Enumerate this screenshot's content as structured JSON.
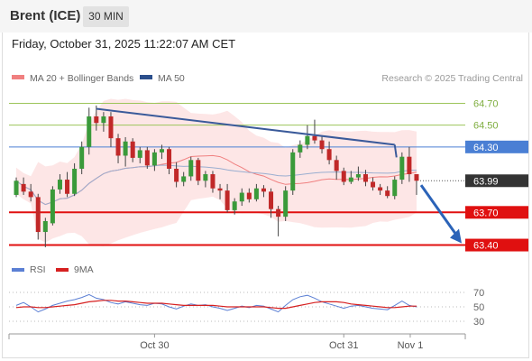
{
  "header": {
    "title": "Brent (ICE)",
    "timeframe": "30 MIN"
  },
  "datetime": "Friday, October 31, 2025 11:22:07 AM CET",
  "colors": {
    "resistance": "#9dc55a",
    "pivot": "#4a7fd4",
    "support": "#e01010",
    "ma20": "#f08080",
    "bollinger_fill": "#fde3e3",
    "ma50": "#2c4f8c",
    "candle_up": "#3a9a3a",
    "candle_down": "#c12828",
    "trend": "#3a5a9a",
    "arrow": "#2b63b8",
    "rsi": "#5b7fd4",
    "rsi_ma": "#d62020"
  },
  "legend": {
    "ma20": "MA 20 + Bollinger Bands",
    "ma50": "MA 50"
  },
  "watermark": "Research © 2025 Trading Central",
  "rsi_legend": {
    "rsi": "RSI",
    "ma": "9MA"
  },
  "chart_data": [
    {
      "type": "candlestick",
      "y_range": [
        63.33,
        64.82
      ],
      "x_ticks": [
        {
          "label": "Oct 30",
          "index": 19
        },
        {
          "label": "Oct 31",
          "index": 45
        },
        {
          "label": "Nov 1",
          "index": 55
        }
      ],
      "levels": [
        {
          "value": 64.7,
          "label": "64.70",
          "kind": "resistance"
        },
        {
          "value": 64.5,
          "label": "64.50",
          "kind": "resistance"
        },
        {
          "value": 64.3,
          "label": "64.30",
          "kind": "pivot"
        },
        {
          "value": 63.7,
          "label": "63.70",
          "kind": "support"
        },
        {
          "value": 63.4,
          "label": "63.40",
          "kind": "support"
        }
      ],
      "last_price": {
        "value": 63.99,
        "label": "63.99"
      },
      "trendline": {
        "from": {
          "index": 11,
          "value": 64.65
        },
        "to": {
          "index": 52,
          "value": 64.32
        }
      },
      "projection": {
        "from": {
          "index": 55,
          "value": 63.95
        },
        "to": {
          "index": 60,
          "value": 63.4
        }
      },
      "candles": [
        [
          63.86,
          63.99,
          63.84,
          64.02
        ],
        [
          63.96,
          63.89,
          63.86,
          64.02
        ],
        [
          63.89,
          63.84,
          63.8,
          63.96
        ],
        [
          63.84,
          63.52,
          63.45,
          63.87
        ],
        [
          63.52,
          63.62,
          63.38,
          63.65
        ],
        [
          63.6,
          63.91,
          63.58,
          63.94
        ],
        [
          63.91,
          64.0,
          63.87,
          64.05
        ],
        [
          64.0,
          63.87,
          63.84,
          64.07
        ],
        [
          63.87,
          64.1,
          63.85,
          64.15
        ],
        [
          64.1,
          64.3,
          64.05,
          64.35
        ],
        [
          64.3,
          64.58,
          64.23,
          64.66
        ],
        [
          64.58,
          64.52,
          64.45,
          64.68
        ],
        [
          64.52,
          64.58,
          64.44,
          64.62
        ],
        [
          64.58,
          64.38,
          64.3,
          64.62
        ],
        [
          64.38,
          64.22,
          64.15,
          64.42
        ],
        [
          64.22,
          64.35,
          64.12,
          64.39
        ],
        [
          64.35,
          64.2,
          64.16,
          64.38
        ],
        [
          64.2,
          64.27,
          64.15,
          64.3
        ],
        [
          64.27,
          64.13,
          64.1,
          64.3
        ],
        [
          64.13,
          64.25,
          64.08,
          64.28
        ],
        [
          64.25,
          64.28,
          64.19,
          64.32
        ],
        [
          64.28,
          64.1,
          64.05,
          64.3
        ],
        [
          64.1,
          63.98,
          63.93,
          64.16
        ],
        [
          63.98,
          64.03,
          63.94,
          64.07
        ],
        [
          64.03,
          64.18,
          63.99,
          64.21
        ],
        [
          64.18,
          63.99,
          63.95,
          64.2
        ],
        [
          63.99,
          64.05,
          63.93,
          64.08
        ],
        [
          64.05,
          63.92,
          63.88,
          64.08
        ],
        [
          63.92,
          63.9,
          63.82,
          63.96
        ],
        [
          63.9,
          63.72,
          63.7,
          63.96
        ],
        [
          63.72,
          63.8,
          63.68,
          63.83
        ],
        [
          63.8,
          63.88,
          63.76,
          63.92
        ],
        [
          63.88,
          63.82,
          63.79,
          63.92
        ],
        [
          63.82,
          63.92,
          63.8,
          63.96
        ],
        [
          63.92,
          63.89,
          63.84,
          63.95
        ],
        [
          63.89,
          63.73,
          63.65,
          63.92
        ],
        [
          63.73,
          63.66,
          63.48,
          63.76
        ],
        [
          63.66,
          63.9,
          63.62,
          63.94
        ],
        [
          63.9,
          64.25,
          63.86,
          64.28
        ],
        [
          64.25,
          64.32,
          64.2,
          64.36
        ],
        [
          64.32,
          64.4,
          64.28,
          64.5
        ],
        [
          64.4,
          64.36,
          64.33,
          64.55
        ],
        [
          64.36,
          64.28,
          64.24,
          64.4
        ],
        [
          64.28,
          64.18,
          64.14,
          64.35
        ],
        [
          64.18,
          64.08,
          64.0,
          64.22
        ],
        [
          64.08,
          63.98,
          63.95,
          64.11
        ],
        [
          63.98,
          64.02,
          63.96,
          64.08
        ],
        [
          64.02,
          64.05,
          63.99,
          64.12
        ],
        [
          64.05,
          63.98,
          63.94,
          64.09
        ],
        [
          63.98,
          63.93,
          63.9,
          64.02
        ],
        [
          63.93,
          63.9,
          63.86,
          63.96
        ],
        [
          63.9,
          63.85,
          63.83,
          63.94
        ],
        [
          63.85,
          64.0,
          63.82,
          64.03
        ],
        [
          64.0,
          64.21,
          63.96,
          64.25
        ],
        [
          64.21,
          64.05,
          63.98,
          64.3
        ],
        [
          64.05,
          63.99,
          63.86,
          64.05
        ]
      ]
    },
    {
      "type": "line",
      "title": "RSI",
      "y_range": [
        25,
        75
      ],
      "y_ticks": [
        70,
        50,
        30
      ],
      "series": [
        {
          "name": "RSI",
          "values": [
            52,
            56,
            50,
            43,
            47,
            52,
            55,
            58,
            60,
            63,
            67,
            62,
            60,
            56,
            54,
            57,
            55,
            53,
            52,
            55,
            54,
            50,
            47,
            51,
            54,
            52,
            53,
            50,
            48,
            45,
            48,
            51,
            49,
            52,
            51,
            47,
            43,
            52,
            60,
            64,
            66,
            62,
            57,
            54,
            51,
            48,
            51,
            52,
            50,
            48,
            47,
            46,
            52,
            58,
            52,
            50
          ]
        },
        {
          "name": "9MA",
          "values": [
            49,
            50,
            50,
            49,
            49,
            50,
            51,
            52,
            53,
            55,
            57,
            58,
            59,
            59,
            58,
            58,
            57,
            56,
            55,
            55,
            55,
            54,
            53,
            52,
            52,
            52,
            52,
            52,
            51,
            50,
            50,
            50,
            50,
            50,
            50,
            49,
            48,
            48,
            50,
            52,
            54,
            56,
            57,
            57,
            57,
            56,
            54,
            53,
            52,
            51,
            50,
            49,
            49,
            50,
            51,
            51
          ]
        }
      ]
    }
  ]
}
